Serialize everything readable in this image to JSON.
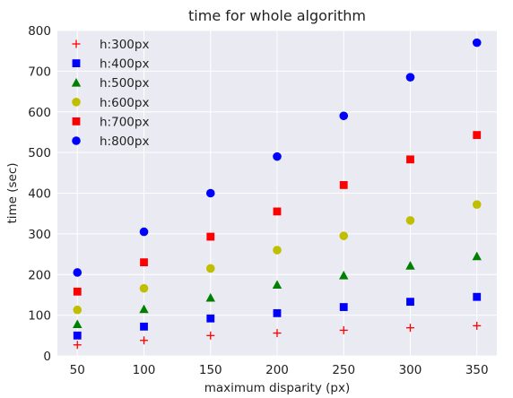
{
  "chart_data": {
    "type": "scatter",
    "title": "time for whole algorithm",
    "xlabel": "maximum disparity (px)",
    "ylabel": "time (sec)",
    "xlim": [
      35,
      365
    ],
    "ylim": [
      0,
      800
    ],
    "xticks": [
      50,
      100,
      150,
      200,
      250,
      300,
      350
    ],
    "yticks": [
      0,
      100,
      200,
      300,
      400,
      500,
      600,
      700,
      800
    ],
    "grid": true,
    "background": "#eaeaf2",
    "legend_position": "top-left",
    "x": [
      50,
      100,
      150,
      200,
      250,
      300,
      350
    ],
    "series": [
      {
        "name": "h:300px",
        "marker": "plus",
        "color": "#ff0000",
        "values": [
          27,
          38,
          50,
          56,
          63,
          69,
          74
        ]
      },
      {
        "name": "h:400px",
        "marker": "square",
        "color": "#0000ff",
        "values": [
          50,
          72,
          92,
          105,
          120,
          133,
          145
        ]
      },
      {
        "name": "h:500px",
        "marker": "triangle",
        "color": "#008000",
        "values": [
          78,
          115,
          143,
          175,
          198,
          222,
          245
        ]
      },
      {
        "name": "h:600px",
        "marker": "circle",
        "color": "#bfbf00",
        "values": [
          113,
          166,
          215,
          260,
          295,
          333,
          372
        ]
      },
      {
        "name": "h:700px",
        "marker": "square",
        "color": "#ff0000",
        "values": [
          158,
          230,
          293,
          355,
          420,
          483,
          543
        ]
      },
      {
        "name": "h:800px",
        "marker": "circle",
        "color": "#0000ff",
        "values": [
          205,
          305,
          400,
          490,
          590,
          685,
          770
        ]
      }
    ]
  }
}
